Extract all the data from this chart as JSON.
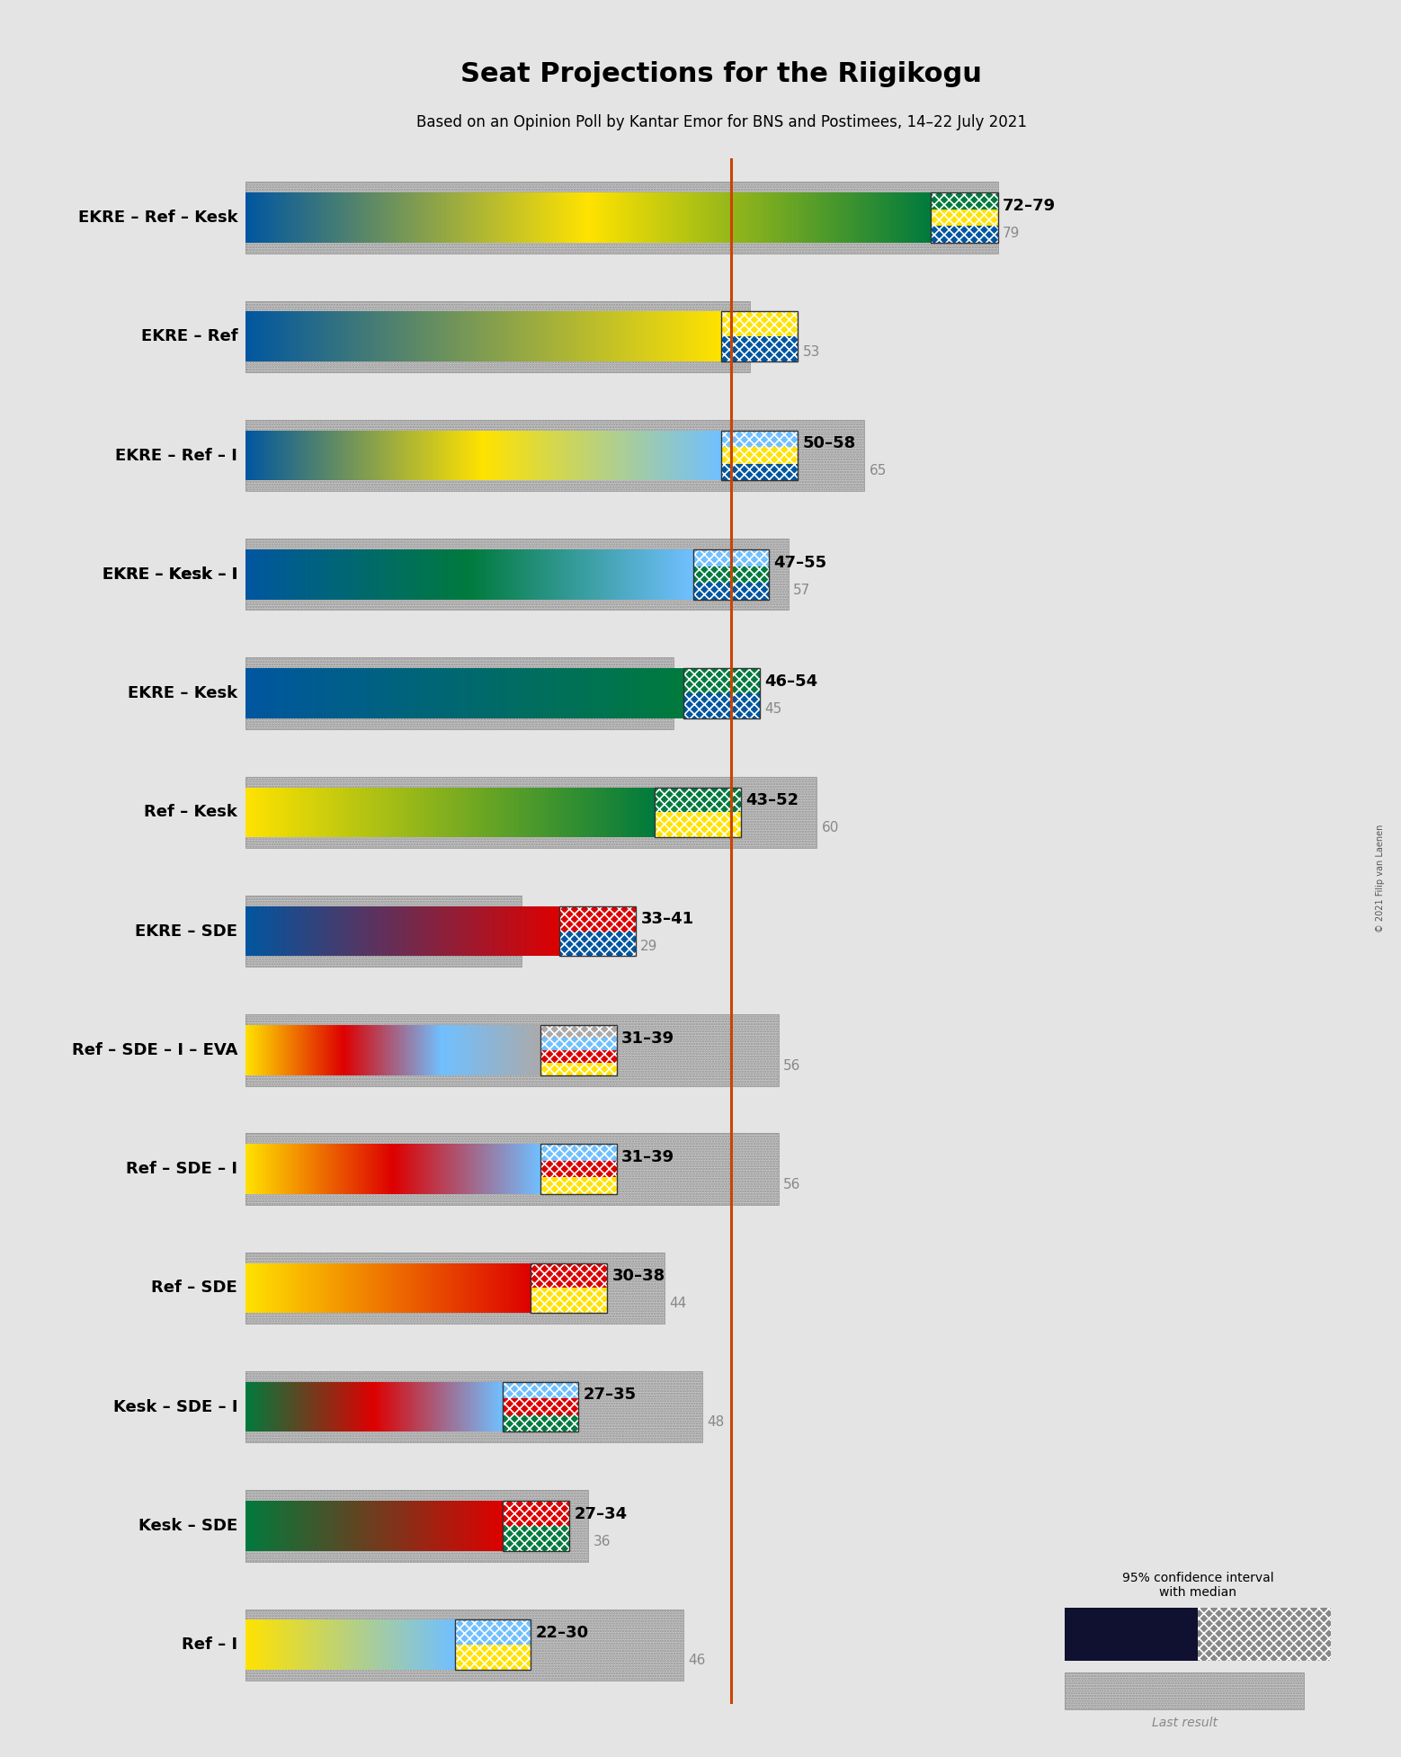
{
  "title": "Seat Projections for the Riigikogu",
  "subtitle": "Based on an Opinion Poll by Kantar Emor for BNS and Postimees, 14–22 July 2021",
  "copyright": "© 2021 Filip van Laenen",
  "majority_line": 51,
  "coalitions": [
    {
      "name": "EKRE – Ref – Kesk",
      "underline": false,
      "ci_low": 72,
      "ci_high": 79,
      "last": 79,
      "colors": [
        "#0056A0",
        "#FFE200",
        "#007A3D"
      ],
      "label": "72–79",
      "last_label": "79"
    },
    {
      "name": "EKRE – Ref",
      "underline": false,
      "ci_low": 50,
      "ci_high": 58,
      "last": 53,
      "colors": [
        "#0056A0",
        "#FFE200"
      ],
      "label": "50–58",
      "last_label": "53"
    },
    {
      "name": "EKRE – Ref – I",
      "underline": false,
      "ci_low": 50,
      "ci_high": 58,
      "last": 65,
      "colors": [
        "#0056A0",
        "#FFE200",
        "#70BFFF"
      ],
      "label": "50–58",
      "last_label": "65"
    },
    {
      "name": "EKRE – Kesk – I",
      "underline": true,
      "ci_low": 47,
      "ci_high": 55,
      "last": 57,
      "colors": [
        "#0056A0",
        "#007A3D",
        "#70BFFF"
      ],
      "label": "47–55",
      "last_label": "57"
    },
    {
      "name": "EKRE – Kesk",
      "underline": false,
      "ci_low": 46,
      "ci_high": 54,
      "last": 45,
      "colors": [
        "#0056A0",
        "#007A3D"
      ],
      "label": "46–54",
      "last_label": "45"
    },
    {
      "name": "Ref – Kesk",
      "underline": false,
      "ci_low": 43,
      "ci_high": 52,
      "last": 60,
      "colors": [
        "#FFE200",
        "#007A3D"
      ],
      "label": "43–52",
      "last_label": "60"
    },
    {
      "name": "EKRE – SDE",
      "underline": false,
      "ci_low": 33,
      "ci_high": 41,
      "last": 29,
      "colors": [
        "#0056A0",
        "#DD0000"
      ],
      "label": "33–41",
      "last_label": "29"
    },
    {
      "name": "Ref – SDE – I – EVA",
      "underline": false,
      "ci_low": 31,
      "ci_high": 39,
      "last": 56,
      "colors": [
        "#FFE200",
        "#DD0000",
        "#70BFFF",
        "#AAAAAA"
      ],
      "label": "31–39",
      "last_label": "56"
    },
    {
      "name": "Ref – SDE – I",
      "underline": false,
      "ci_low": 31,
      "ci_high": 39,
      "last": 56,
      "colors": [
        "#FFE200",
        "#DD0000",
        "#70BFFF"
      ],
      "label": "31–39",
      "last_label": "56"
    },
    {
      "name": "Ref – SDE",
      "underline": false,
      "ci_low": 30,
      "ci_high": 38,
      "last": 44,
      "colors": [
        "#FFE200",
        "#DD0000"
      ],
      "label": "30–38",
      "last_label": "44"
    },
    {
      "name": "Kesk – SDE – I",
      "underline": false,
      "ci_low": 27,
      "ci_high": 35,
      "last": 48,
      "colors": [
        "#007A3D",
        "#DD0000",
        "#70BFFF"
      ],
      "label": "27–35",
      "last_label": "48"
    },
    {
      "name": "Kesk – SDE",
      "underline": false,
      "ci_low": 27,
      "ci_high": 34,
      "last": 36,
      "colors": [
        "#007A3D",
        "#DD0000"
      ],
      "label": "27–34",
      "last_label": "36"
    },
    {
      "name": "Ref – I",
      "underline": false,
      "ci_low": 22,
      "ci_high": 30,
      "last": 46,
      "colors": [
        "#FFE200",
        "#70BFFF"
      ],
      "label": "22–30",
      "last_label": "46"
    }
  ],
  "x_max": 100,
  "background_color": "#E4E4E4",
  "majority_color": "#CC4400",
  "dot_bg_color": "#C8C8C8",
  "dot_edge_color": "#909090"
}
